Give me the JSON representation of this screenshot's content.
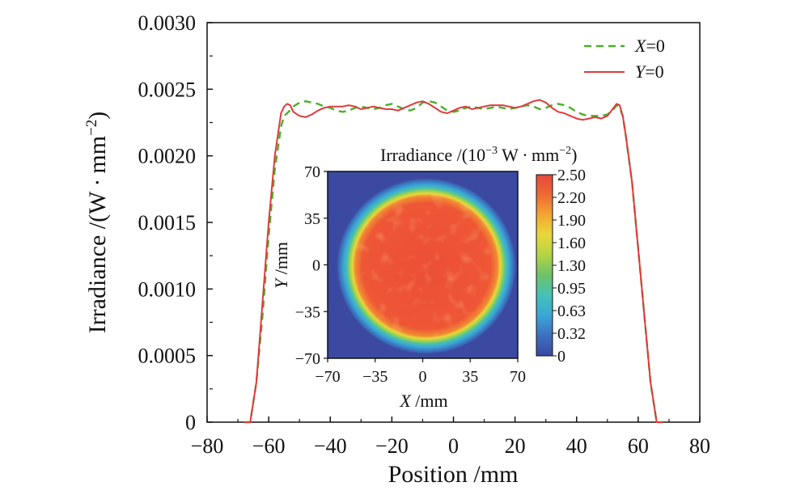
{
  "chart_data": [
    {
      "type": "line",
      "xlabel": "Position /mm",
      "ylabel": "Irradiance /(W · mm",
      "ylabel_exp": "−2",
      "ylabel_close": ")",
      "xlim": [
        -80,
        80
      ],
      "ylim": [
        0,
        0.003
      ],
      "xticks": [
        -80,
        -60,
        -40,
        -20,
        0,
        20,
        40,
        60,
        80
      ],
      "xtick_labels": [
        "−80",
        "−60",
        "−40",
        "−20",
        "0",
        "20",
        "40",
        "60",
        "80"
      ],
      "yticks": [
        0,
        0.0005,
        0.001,
        0.0015,
        0.002,
        0.0025,
        0.003
      ],
      "ytick_labels": [
        "0",
        "0.0005",
        "0.0010",
        "0.0015",
        "0.0020",
        "0.0025",
        "0.0030"
      ],
      "legend_position": "top-right",
      "series": [
        {
          "name": "X=0",
          "name_var": "X",
          "name_rest": "=0",
          "color": "#4caf2a",
          "style": "dashed",
          "x": [
            -68,
            -66,
            -64,
            -62,
            -60,
            -58,
            -56,
            -55,
            -54,
            -52,
            -50,
            -48,
            -46,
            -44,
            -42,
            -40,
            -38,
            -36,
            -34,
            -32,
            -30,
            -28,
            -26,
            -24,
            -22,
            -20,
            -18,
            -16,
            -14,
            -12,
            -10,
            -8,
            -6,
            -4,
            -2,
            0,
            2,
            4,
            6,
            8,
            10,
            12,
            14,
            16,
            18,
            20,
            22,
            24,
            26,
            28,
            30,
            32,
            34,
            36,
            38,
            40,
            42,
            44,
            46,
            48,
            50,
            52,
            53,
            54,
            55,
            56,
            58,
            60,
            62,
            64,
            66,
            68
          ],
          "y": [
            0,
            0,
            0.0003,
            0.0008,
            0.0014,
            0.0019,
            0.00222,
            0.0023,
            0.00232,
            0.00237,
            0.0024,
            0.00241,
            0.0024,
            0.00239,
            0.00237,
            0.00236,
            0.00234,
            0.00233,
            0.00234,
            0.00236,
            0.00237,
            0.00236,
            0.00235,
            0.00236,
            0.00238,
            0.00239,
            0.00237,
            0.00235,
            0.00234,
            0.00236,
            0.0024,
            0.00241,
            0.0024,
            0.00237,
            0.00234,
            0.00233,
            0.00234,
            0.00236,
            0.00237,
            0.00236,
            0.00235,
            0.00236,
            0.00237,
            0.00236,
            0.00235,
            0.00236,
            0.00237,
            0.00238,
            0.00237,
            0.00235,
            0.00236,
            0.00238,
            0.00239,
            0.00238,
            0.00236,
            0.00233,
            0.00231,
            0.0023,
            0.0023,
            0.0023,
            0.00231,
            0.00235,
            0.00238,
            0.00236,
            0.0023,
            0.00215,
            0.0018,
            0.0013,
            0.0008,
            0.0003,
            0,
            0
          ]
        },
        {
          "name": "Y=0",
          "name_var": "Y",
          "name_rest": "=0",
          "color": "#e03a3c",
          "style": "solid",
          "x": [
            -68,
            -66,
            -64,
            -62,
            -60,
            -58,
            -56,
            -55,
            -54,
            -53,
            -52,
            -50,
            -48,
            -46,
            -44,
            -42,
            -40,
            -38,
            -36,
            -34,
            -32,
            -30,
            -28,
            -26,
            -24,
            -22,
            -20,
            -18,
            -16,
            -14,
            -12,
            -10,
            -8,
            -6,
            -4,
            -2,
            0,
            2,
            4,
            6,
            8,
            10,
            12,
            14,
            16,
            18,
            20,
            22,
            24,
            26,
            28,
            30,
            32,
            34,
            36,
            38,
            40,
            42,
            44,
            46,
            48,
            50,
            52,
            53,
            54,
            55,
            56,
            58,
            60,
            62,
            64,
            66,
            68
          ],
          "y": [
            0,
            0,
            0.0003,
            0.0009,
            0.0015,
            0.002,
            0.00232,
            0.00237,
            0.00239,
            0.00238,
            0.00233,
            0.0023,
            0.00229,
            0.00231,
            0.00234,
            0.00236,
            0.00237,
            0.00237,
            0.00237,
            0.00238,
            0.00237,
            0.00235,
            0.00236,
            0.00237,
            0.00236,
            0.00235,
            0.00235,
            0.00234,
            0.00236,
            0.00238,
            0.0024,
            0.00241,
            0.00239,
            0.00236,
            0.00233,
            0.00232,
            0.00234,
            0.00236,
            0.00237,
            0.00235,
            0.00236,
            0.00237,
            0.00238,
            0.00238,
            0.00238,
            0.00237,
            0.00236,
            0.00237,
            0.00239,
            0.00241,
            0.00242,
            0.0024,
            0.00236,
            0.00233,
            0.00232,
            0.0023,
            0.00228,
            0.00227,
            0.00228,
            0.00229,
            0.00228,
            0.0023,
            0.00236,
            0.00239,
            0.00238,
            0.0023,
            0.00215,
            0.0018,
            0.0013,
            0.0008,
            0.0003,
            0,
            0
          ]
        }
      ]
    },
    {
      "type": "heatmap",
      "title": "Irradiance /(10",
      "title_exp1": "−3",
      "title_mid": " W · mm",
      "title_exp2": "−2",
      "title_close": ")",
      "xlabel_var": "X",
      "xlabel_rest": " /mm",
      "ylabel_var": "Y",
      "ylabel_rest": " /mm",
      "xlim": [
        -70,
        70
      ],
      "ylim": [
        -70,
        70
      ],
      "xtick_labels": [
        "−70",
        "−35",
        "0",
        "35",
        "70"
      ],
      "ytick_labels": [
        "70",
        "35",
        "0",
        "−35",
        "−70"
      ],
      "description_values": {
        "disk_radius_mm": 55,
        "center_irradiance": 2.3,
        "background_irradiance": 0
      },
      "colorbar": {
        "tick_labels": [
          "2.50",
          "2.20",
          "1.90",
          "1.60",
          "1.30",
          "0.95",
          "0.63",
          "0.32",
          "0"
        ],
        "colors": [
          "#3b4aa0",
          "#3f6fbf",
          "#3aa6d8",
          "#45c1b9",
          "#6cc26a",
          "#b3d445",
          "#e8d83a",
          "#f2a631",
          "#ee6a32",
          "#e7473a"
        ]
      }
    }
  ]
}
